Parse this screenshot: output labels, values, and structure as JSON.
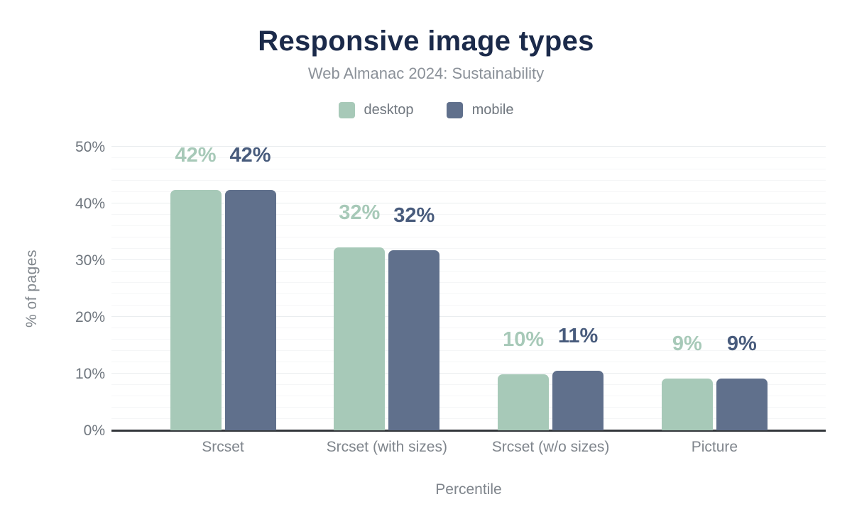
{
  "header": {
    "title": "Responsive image types",
    "subtitle": "Web Almanac 2024: Sustainability"
  },
  "colors": {
    "title": "#1b2a4a",
    "subtitle_text": "#8b9199",
    "axis_text": "#6f767e",
    "category_text": "#7f858c",
    "axis_line": "#33373b",
    "grid_major": "#eaedef",
    "grid_minor": "#f5f6f7"
  },
  "chart_data": {
    "type": "bar",
    "title": "Responsive image types",
    "subtitle": "Web Almanac 2024: Sustainability",
    "categories": [
      "Srcset",
      "Srcset (with sizes)",
      "Srcset (w/o sizes)",
      "Picture"
    ],
    "series": [
      {
        "name": "desktop",
        "color": "#a7c9b8",
        "label_color": "#a7c9b8",
        "values": [
          42.4,
          32.3,
          9.9,
          9.1
        ],
        "labels": [
          "42%",
          "32%",
          "10%",
          "9%"
        ]
      },
      {
        "name": "mobile",
        "color": "#60708c",
        "label_color": "#485b7c",
        "values": [
          42.4,
          31.8,
          10.5,
          9.1
        ],
        "labels": [
          "42%",
          "32%",
          "11%",
          "9%"
        ]
      }
    ],
    "xlabel": "Percentile",
    "ylabel": "% of pages",
    "ylim": [
      0,
      50
    ],
    "yticks": [
      "0%",
      "10%",
      "20%",
      "30%",
      "40%",
      "50%"
    ],
    "y_major_step": 10,
    "y_minor_step": 2,
    "grid": "horizontal-only",
    "legend_position": "top-center"
  }
}
